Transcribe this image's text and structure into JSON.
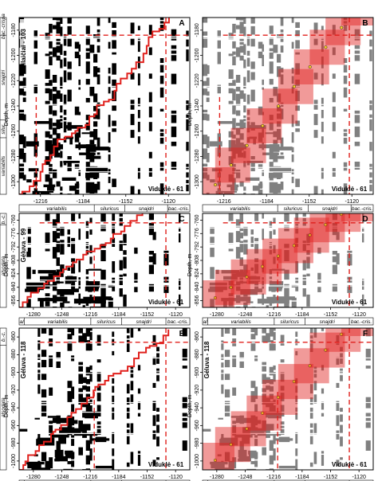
{
  "figure": {
    "accent_red": "#e0201c",
    "fill_gray": "#808080",
    "fill_black": "#000000",
    "panels": [
      {
        "letter": "A",
        "well_label": "Milaičiai - 103",
        "ref_label": "Viduklė - 61",
        "axis_title": "Depth, m",
        "variant": "recurrence",
        "y_ticks": [
          "-1180",
          "-1200",
          "-1220",
          "-1240",
          "-1260",
          "-1280",
          "-1300"
        ],
        "x_ticks": [
          "-1216",
          "-1184",
          "-1152",
          "-1120"
        ],
        "x_zones": [
          "variabilis",
          "siluricus",
          "snajdri",
          "bac.-cris."
        ],
        "y_zones": [
          "bac.-crispa",
          "snajdri",
          "silur.",
          "variabilis"
        ]
      },
      {
        "letter": "B",
        "well_label": "",
        "ref_label": "Viduklė - 61",
        "axis_title": "Depth, m",
        "variant": "band",
        "y_ticks": [
          "-1180",
          "-1200",
          "-1220",
          "-1240",
          "-1260",
          "-1280",
          "-1300"
        ],
        "x_ticks": [
          "-1216",
          "-1184",
          "-1152",
          "-1120"
        ],
        "x_zones": [
          "variabilis",
          "siluricus",
          "snajdri",
          "bac.-cris."
        ],
        "y_zones": []
      },
      {
        "letter": "C",
        "well_label": "Gėluva - 99",
        "ref_label": "Viduklė - 61",
        "axis_title": "Depth, m",
        "variant": "recurrence",
        "y_ticks": [
          "-760",
          "-776",
          "-792",
          "-808",
          "-824",
          "-840",
          "-856"
        ],
        "x_ticks": [
          "-1280",
          "-1248",
          "-1216",
          "-1184",
          "-1152",
          "-1120"
        ],
        "x_zones": [
          "al",
          "variabilis",
          "siluricus",
          "snajdri",
          "bac.-cris."
        ],
        "y_zones": [
          "b.-c.",
          "alsodata"
        ]
      },
      {
        "letter": "D",
        "well_label": "",
        "ref_label": "Viduklė - 61",
        "axis_title": "Depth, m",
        "variant": "band",
        "y_ticks": [
          "-760",
          "-776",
          "-792",
          "-808",
          "-824",
          "-840",
          "-856"
        ],
        "x_ticks": [
          "-1280",
          "-1248",
          "-1216",
          "-1184",
          "-1152",
          "-1120"
        ],
        "x_zones": [
          "al",
          "variabilis",
          "siluricus",
          "snajdri",
          "bac.-cris."
        ],
        "y_zones": []
      },
      {
        "letter": "E",
        "well_label": "Gėluva - 118",
        "ref_label": "Viduklė - 61",
        "axis_title": "Depth, m",
        "variant": "recurrence",
        "y_ticks": [
          "-860",
          "-880",
          "-900",
          "-920",
          "-940",
          "-960",
          "-980",
          "-1000"
        ],
        "x_ticks": [
          "-1280",
          "-1248",
          "-1216",
          "-1184",
          "-1152",
          "-1120"
        ],
        "x_zones": [
          "al",
          "variabilis",
          "siluricus",
          "snajdri",
          "bac.-cris."
        ],
        "y_zones": [
          "b.-c.",
          "alsodata"
        ]
      },
      {
        "letter": "F",
        "well_label": "Gėluva - 118",
        "ref_label": "Viduklė - 61",
        "axis_title": "Depth, m",
        "variant": "band",
        "y_ticks": [
          "-860",
          "-880",
          "-900",
          "-920",
          "-940",
          "-960",
          "-980",
          "-1000"
        ],
        "x_ticks": [
          "-1280",
          "-1248",
          "-1216",
          "-1184",
          "-1152",
          "-1120"
        ],
        "x_zones": [
          "al",
          "variabilis",
          "siluricus",
          "snajdri",
          "bac.-cris."
        ],
        "y_zones": []
      }
    ]
  }
}
